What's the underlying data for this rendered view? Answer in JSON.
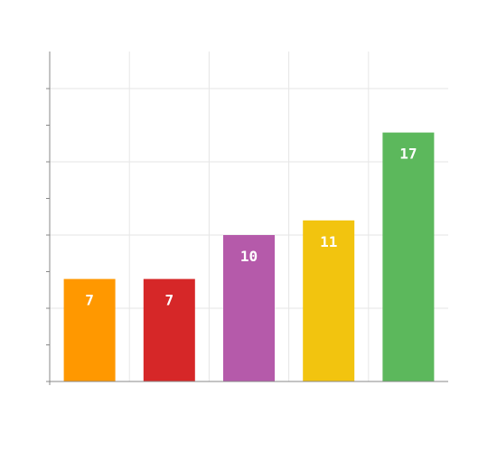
{
  "chart_data": {
    "type": "bar",
    "title": "",
    "xlabel": "",
    "ylabel": "",
    "categories": [
      "",
      "",
      "",
      "",
      ""
    ],
    "values": [
      7,
      7,
      10,
      11,
      17
    ],
    "data_labels": [
      "7",
      "7",
      "10",
      "11",
      "17"
    ],
    "colors": [
      "#ff9800",
      "#d62728",
      "#b55aaa",
      "#f2c40f",
      "#5cb85c"
    ],
    "ylim": [
      0,
      20
    ],
    "grid": true,
    "legend": "none"
  }
}
